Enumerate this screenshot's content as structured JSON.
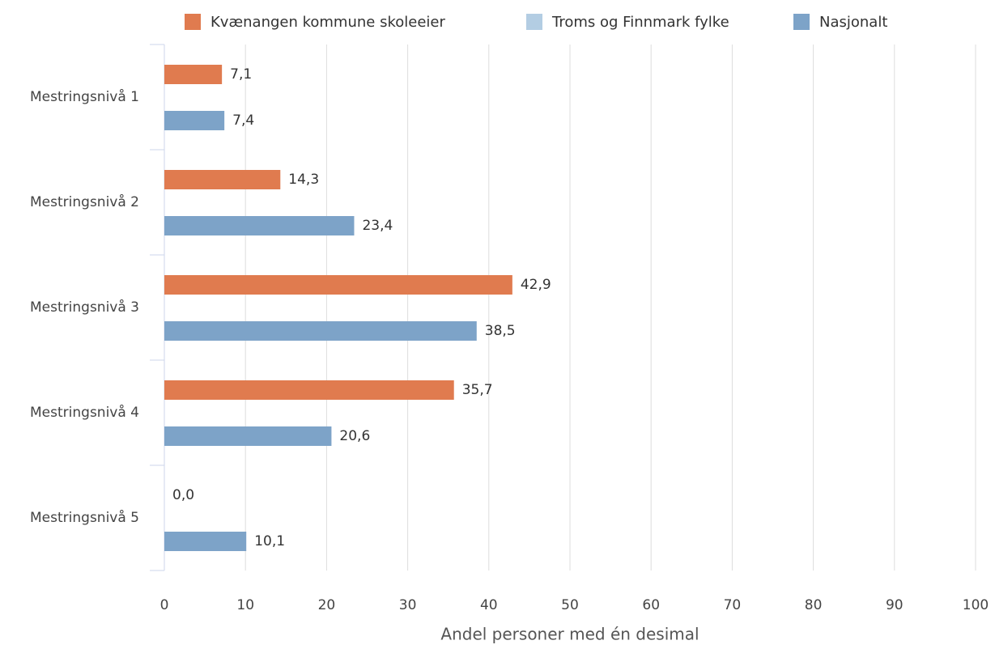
{
  "chart_data": {
    "type": "hbar",
    "categories": [
      "Mestringsnivå 1",
      "Mestringsnivå 2",
      "Mestringsnivå 3",
      "Mestringsnivå 4",
      "Mestringsnivå 5"
    ],
    "series": [
      {
        "name": "Kvænangen kommune skoleeier",
        "color": "#e07b4f",
        "values": [
          7.1,
          14.3,
          42.9,
          35.7,
          0.0
        ],
        "value_labels": [
          "7,1",
          "14,3",
          "42,9",
          "35,7",
          "0,0"
        ]
      },
      {
        "name": "Troms og Finnmark fylke",
        "color": "#b3cde3",
        "values": [
          null,
          null,
          null,
          null,
          null
        ]
      },
      {
        "name": "Nasjonalt",
        "color": "#7da3c8",
        "values": [
          7.4,
          23.4,
          38.5,
          20.6,
          10.1
        ],
        "value_labels": [
          "7,4",
          "23,4",
          "38,5",
          "20,6",
          "10,1"
        ]
      }
    ],
    "xlabel": "Andel personer med én desimal",
    "xlim": [
      0,
      100
    ],
    "xticks": [
      0,
      10,
      20,
      30,
      40,
      50,
      60,
      70,
      80,
      90,
      100
    ],
    "grid": true
  }
}
